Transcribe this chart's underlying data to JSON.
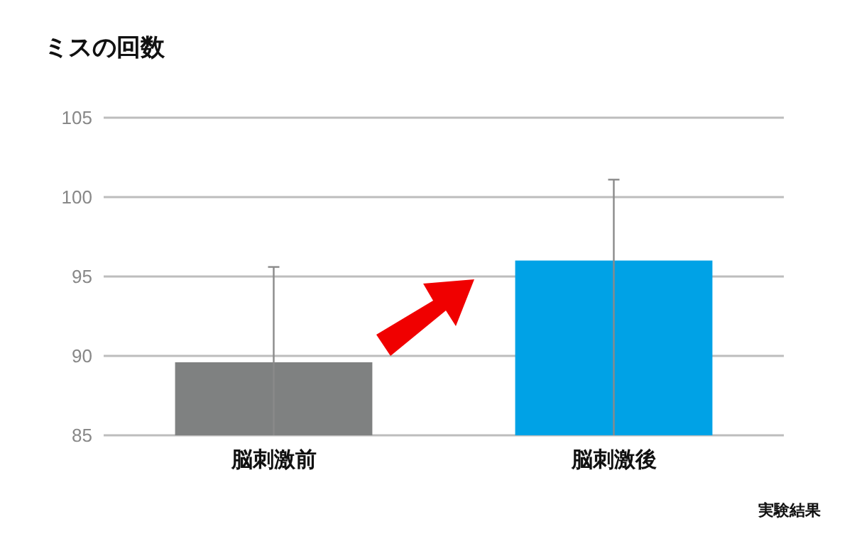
{
  "chart_data": {
    "type": "bar",
    "title": "ミスの回数",
    "categories": [
      "脳刺激前",
      "脳刺激後"
    ],
    "values": [
      89.6,
      96.0
    ],
    "colors": [
      "#7f8181",
      "#00a2e6"
    ],
    "errors": [
      [
        85,
        95.6
      ],
      [
        85,
        101.1
      ]
    ],
    "ylim": [
      85,
      105
    ],
    "yticks": [
      85,
      90,
      95,
      100,
      105
    ],
    "grid": "y",
    "annotations": [
      "実験結果"
    ]
  }
}
